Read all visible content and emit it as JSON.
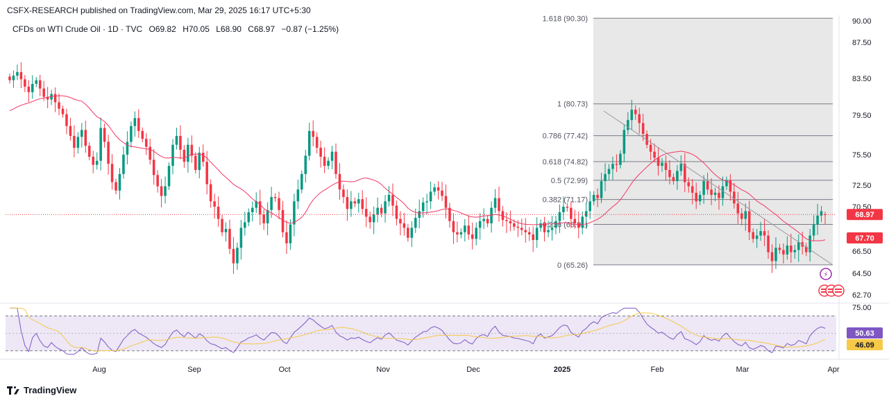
{
  "header": {
    "published": "CSFX-RESEARCH published on TradingView.com, Mar 29, 2025 16:17 UTC+5:30"
  },
  "legend": {
    "symbol": "CFDs on WTI Crude Oil · 1D · TVC",
    "open": "O69.82",
    "high": "H70.05",
    "low": "L68.90",
    "close": "C68.97",
    "change": "−0.87 (−1.25%)"
  },
  "footer": {
    "brand": "TradingView"
  },
  "colors": {
    "up": "#089981",
    "down": "#f23645",
    "ma": "#f23665",
    "rsi": "#7e57c2",
    "rsi_ma": "#f7c948",
    "fib": "#787b86",
    "price_tag": "#f23645"
  },
  "icons": [
    "lightning-icon",
    "flag-us-icon"
  ],
  "chart_data": [
    {
      "type": "candlestick",
      "title": "CFDs on WTI Crude Oil · 1D · TVC",
      "y_ticks": [
        "90.00",
        "87.50",
        "83.50",
        "79.50",
        "75.50",
        "72.50",
        "70.50",
        "66.50",
        "64.50",
        "62.70"
      ],
      "x_ticks": [
        "Aug",
        "Sep",
        "Oct",
        "Nov",
        "Dec",
        "2025",
        "Feb",
        "Mar",
        "Apr"
      ],
      "ylim": [
        62.0,
        90.5
      ],
      "last_price": "68.97",
      "ma_label": "67.70",
      "ohlc_last": {
        "open": 69.82,
        "high": 70.05,
        "low": 68.9,
        "close": 68.97
      },
      "fib_levels": [
        {
          "label": "1.618 (90.30)",
          "value": 90.3
        },
        {
          "label": "1 (80.73)",
          "value": 80.73
        },
        {
          "label": "0.786 (77.42)",
          "value": 77.42
        },
        {
          "label": "0.618 (74.82)",
          "value": 74.82
        },
        {
          "label": "0.5 (72.99)",
          "value": 72.99
        },
        {
          "label": "0.382 (71.17)",
          "value": 71.17
        },
        {
          "label": "0.236 (68.91)",
          "value": 68.91
        },
        {
          "label": "0 (65.26)",
          "value": 65.26
        }
      ],
      "closes": [
        83.3,
        83.8,
        84.2,
        83.4,
        82.6,
        82.0,
        82.9,
        83.3,
        82.4,
        81.5,
        81.2,
        81.8,
        80.9,
        80.2,
        79.6,
        78.4,
        77.4,
        76.2,
        77.3,
        78.0,
        76.4,
        75.3,
        74.5,
        74.9,
        78.2,
        76.8,
        74.6,
        72.8,
        72.0,
        73.6,
        75.5,
        76.8,
        78.4,
        79.2,
        77.9,
        77.1,
        76.3,
        75.0,
        73.5,
        72.4,
        71.5,
        72.4,
        74.4,
        76.5,
        77.4,
        76.0,
        74.8,
        76.5,
        75.4,
        74.0,
        75.7,
        74.8,
        72.6,
        71.0,
        70.5,
        69.4,
        68.2,
        68.5,
        66.7,
        65.4,
        66.8,
        68.6,
        69.1,
        70.0,
        70.4,
        71.0,
        69.8,
        69.0,
        70.2,
        71.4,
        71.3,
        70.2,
        68.2,
        67.2,
        68.9,
        71.0,
        72.1,
        73.6,
        75.4,
        77.9,
        77.3,
        76.2,
        75.3,
        74.4,
        74.9,
        75.8,
        73.6,
        72.1,
        71.4,
        70.3,
        71.0,
        70.8,
        71.2,
        70.3,
        69.6,
        69.1,
        69.8,
        70.4,
        69.9,
        71.0,
        71.6,
        70.6,
        69.4,
        69.0,
        68.6,
        67.7,
        68.6,
        69.5,
        70.1,
        70.9,
        71.0,
        71.9,
        72.3,
        72.0,
        71.5,
        70.4,
        69.2,
        68.2,
        68.0,
        68.2,
        68.8,
        68.0,
        67.6,
        68.6,
        69.2,
        69.4,
        69.0,
        70.4,
        71.3,
        70.1,
        69.3,
        69.2,
        69.0,
        68.7,
        68.6,
        68.4,
        68.2,
        68.0,
        67.5,
        68.6,
        69.0,
        68.2,
        68.4,
        68.6,
        69.2,
        70.0,
        70.5,
        70.4,
        69.4,
        69.0,
        68.6,
        69.6,
        70.1,
        71.0,
        71.6,
        71.3,
        72.9,
        73.6,
        74.1,
        74.6,
        74.5,
        75.6,
        78.0,
        79.0,
        80.1,
        79.6,
        78.7,
        77.6,
        76.5,
        75.8,
        75.2,
        74.4,
        74.7,
        74.0,
        73.3,
        72.9,
        73.9,
        74.6,
        72.8,
        72.4,
        71.8,
        71.0,
        71.6,
        72.9,
        72.1,
        71.6,
        71.8,
        71.3,
        72.4,
        73.0,
        71.9,
        70.8,
        69.9,
        69.4,
        70.1,
        68.2,
        67.6,
        67.9,
        68.3,
        67.9,
        66.4,
        65.6,
        66.8,
        66.6,
        66.2,
        67.0,
        66.4,
        66.6,
        67.3,
        66.9,
        66.4,
        67.9,
        68.9,
        69.7,
        70.1,
        69.8
      ],
      "ma20_start": 79.8
    },
    {
      "type": "line",
      "title": "",
      "y_ticks": [
        "75.00",
        "50.63",
        "46.09"
      ],
      "rsi_value": "50.63",
      "rsi_ma_value": "46.09",
      "bands": [
        70,
        30
      ],
      "ylim": [
        25,
        80
      ]
    }
  ]
}
